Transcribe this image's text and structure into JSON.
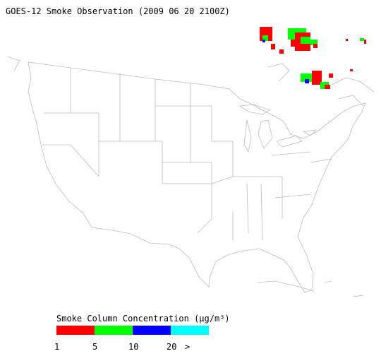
{
  "title": "GOES-12 Smoke Observation (2009 06 20  2100Z)",
  "legend": {
    "title": "Smoke Column Concentration (μg/m³)",
    "colors": [
      "#ff0000",
      "#00ff00",
      "#0000ff",
      "#00ffff"
    ],
    "tick_labels": [
      "1",
      "5",
      "10",
      "20",
      ">"
    ]
  }
}
